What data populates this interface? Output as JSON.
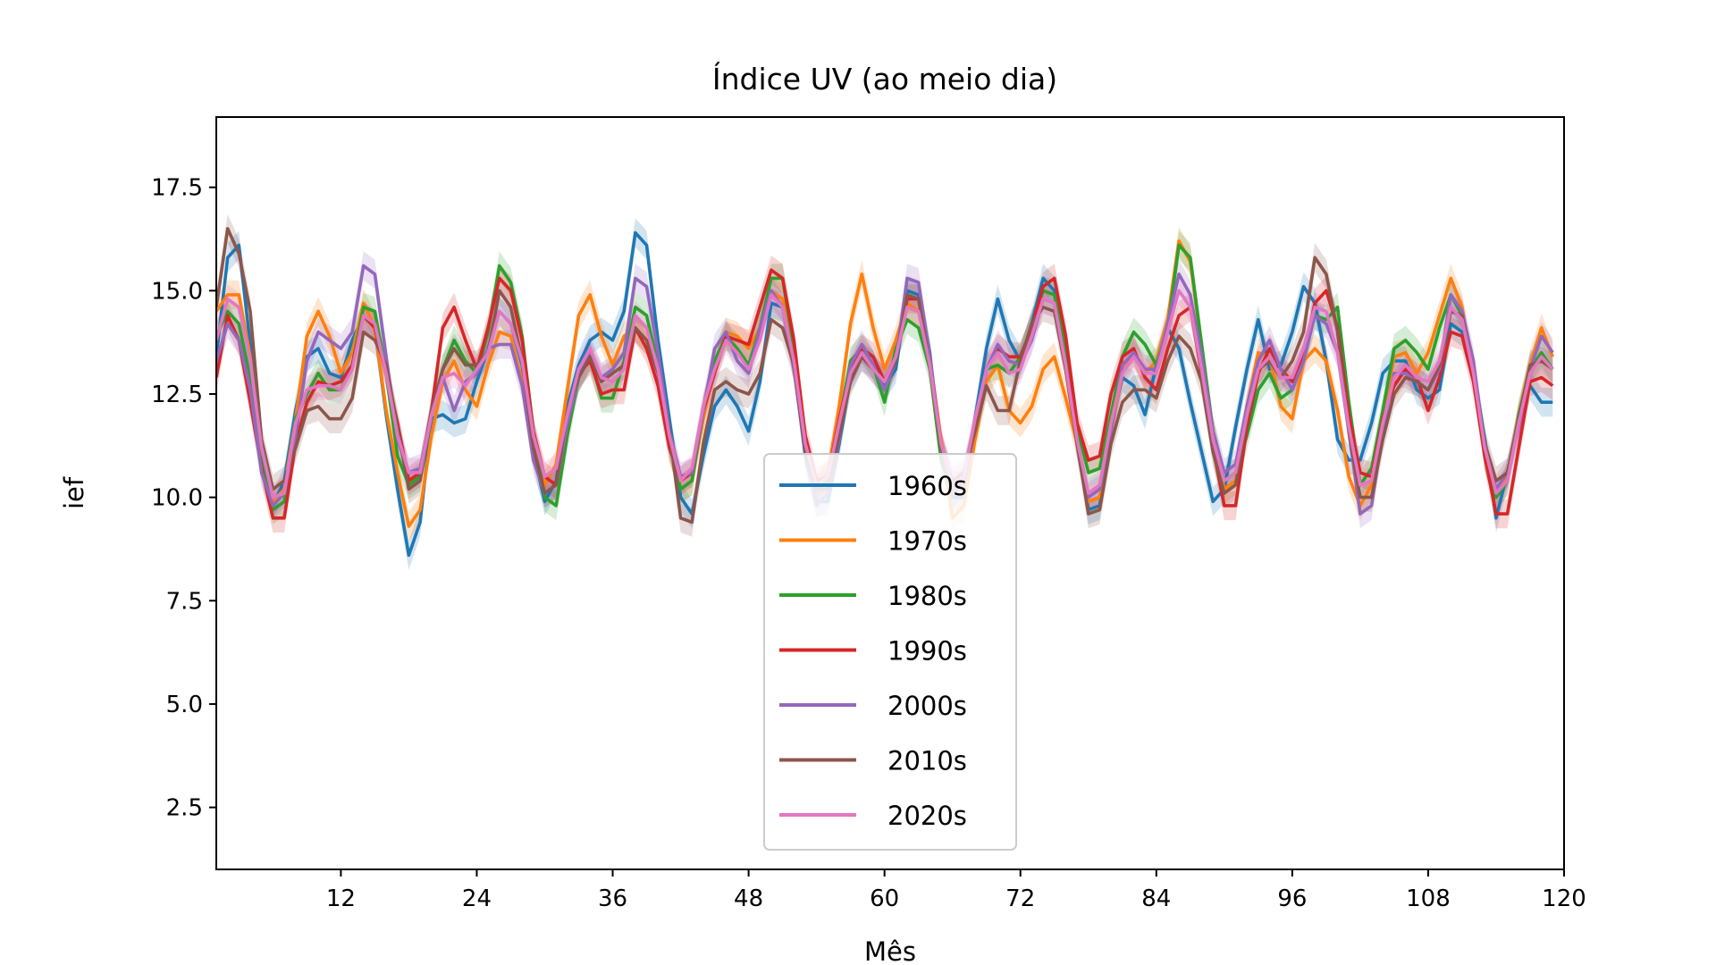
{
  "chart_data": {
    "type": "line",
    "title": "Índice UV (ao meio dia)",
    "xlabel": "Mês",
    "ylabel": "ief",
    "xlim": [
      1,
      120
    ],
    "ylim": [
      1.0,
      19.2
    ],
    "xticks": [
      12,
      24,
      36,
      48,
      60,
      72,
      84,
      96,
      108,
      120
    ],
    "yticks": [
      2.5,
      5.0,
      7.5,
      10.0,
      12.5,
      15.0,
      17.5
    ],
    "ytick_labels": [
      "2.5",
      "5.0",
      "7.5",
      "10.0",
      "12.5",
      "15.0",
      "17.5"
    ],
    "legend_position": "lower center",
    "confidence_band": true,
    "x_start": 1,
    "series": [
      {
        "name": "1960s",
        "color": "#1f77b4",
        "values": [
          13.4,
          15.8,
          16.1,
          13.7,
          11.2,
          9.8,
          10.4,
          12.1,
          13.4,
          13.6,
          13.0,
          12.9,
          13.8,
          14.4,
          14.1,
          12.0,
          10.2,
          8.6,
          9.4,
          11.9,
          12.0,
          11.8,
          11.9,
          12.8,
          13.6,
          14.5,
          14.2,
          13.2,
          11.1,
          9.9,
          10.4,
          12.2,
          13.2,
          13.8,
          14.0,
          13.8,
          14.5,
          16.4,
          16.1,
          13.8,
          11.9,
          10.0,
          9.6,
          11.0,
          12.2,
          12.6,
          12.2,
          11.6,
          12.8,
          14.7,
          14.6,
          13.2,
          11.0,
          9.9,
          9.9,
          11.3,
          12.9,
          13.4,
          13.2,
          12.7,
          13.1,
          15.0,
          14.9,
          13.5,
          11.0,
          10.0,
          10.0,
          11.9,
          13.6,
          14.8,
          13.8,
          13.3,
          14.2,
          15.3,
          15.0,
          13.4,
          11.4,
          9.7,
          9.8,
          11.7,
          12.9,
          12.7,
          12.0,
          13.2,
          14.1,
          13.6,
          12.3,
          11.1,
          9.9,
          10.2,
          11.7,
          13.1,
          14.3,
          13.1,
          13.2,
          14.0,
          15.1,
          14.7,
          13.3,
          11.4,
          10.9,
          10.9,
          11.8,
          13.0,
          13.3,
          13.3,
          12.6,
          12.4,
          12.6,
          14.2,
          14.0,
          13.1,
          11.4,
          9.5,
          10.6,
          11.8,
          12.7,
          12.3,
          12.3
        ]
      },
      {
        "name": "1970s",
        "color": "#ff7f0e",
        "values": [
          14.5,
          14.9,
          14.9,
          13.4,
          11.0,
          9.9,
          10.2,
          11.9,
          13.9,
          14.5,
          13.9,
          13.0,
          13.5,
          14.7,
          14.1,
          12.1,
          10.6,
          9.3,
          9.7,
          11.5,
          12.8,
          13.3,
          12.6,
          12.2,
          13.2,
          14.0,
          13.9,
          12.8,
          11.2,
          10.3,
          10.8,
          12.6,
          14.4,
          14.9,
          13.9,
          13.2,
          13.9,
          14.1,
          13.8,
          13.3,
          11.3,
          10.2,
          10.4,
          11.9,
          13.2,
          14.0,
          13.9,
          13.6,
          14.1,
          15.0,
          14.8,
          13.4,
          11.3,
          10.2,
          10.6,
          12.2,
          14.2,
          15.4,
          14.1,
          13.1,
          13.8,
          14.7,
          14.5,
          13.3,
          11.4,
          9.5,
          9.8,
          11.4,
          12.8,
          13.2,
          12.1,
          11.8,
          12.2,
          13.1,
          13.4,
          12.4,
          11.3,
          9.9,
          10.0,
          11.6,
          13.0,
          13.5,
          13.0,
          13.3,
          14.3,
          16.2,
          15.7,
          13.6,
          11.6,
          10.2,
          10.4,
          12.2,
          13.5,
          13.4,
          12.2,
          11.9,
          13.3,
          13.6,
          13.3,
          12.1,
          10.5,
          9.8,
          10.3,
          11.9,
          13.4,
          13.5,
          13.0,
          13.5,
          14.4,
          15.3,
          14.6,
          13.0,
          11.0,
          10.0,
          10.5,
          12.0,
          13.2,
          14.1,
          13.4
        ]
      },
      {
        "name": "1980s",
        "color": "#2ca02c",
        "values": [
          13.9,
          14.5,
          14.2,
          12.9,
          10.9,
          9.7,
          9.9,
          11.9,
          12.5,
          13.0,
          12.6,
          12.6,
          13.2,
          14.6,
          14.5,
          13.0,
          11.0,
          10.3,
          10.5,
          12.0,
          13.1,
          13.8,
          13.3,
          13.0,
          14.0,
          15.6,
          15.2,
          13.9,
          11.6,
          10.0,
          9.8,
          11.5,
          12.9,
          13.4,
          12.4,
          12.4,
          13.3,
          14.6,
          14.4,
          13.2,
          11.3,
          10.2,
          10.4,
          12.1,
          13.3,
          13.9,
          13.6,
          13.2,
          14.1,
          15.3,
          15.3,
          13.6,
          11.1,
          10.2,
          10.4,
          11.8,
          13.3,
          13.6,
          13.2,
          12.3,
          13.6,
          14.3,
          14.1,
          13.1,
          10.9,
          10.1,
          10.4,
          11.8,
          13.1,
          13.2,
          13.0,
          13.4,
          14.1,
          15.0,
          14.9,
          13.6,
          11.7,
          10.6,
          10.7,
          12.0,
          13.4,
          14.0,
          13.7,
          13.2,
          14.1,
          16.1,
          15.8,
          13.7,
          11.6,
          10.4,
          10.6,
          11.5,
          12.6,
          13.0,
          12.4,
          12.6,
          13.4,
          14.4,
          14.3,
          14.6,
          12.3,
          10.3,
          10.7,
          12.1,
          13.6,
          13.8,
          13.5,
          13.1,
          14.1,
          14.9,
          14.4,
          13.0,
          11.0,
          10.0,
          10.4,
          12.0,
          13.1,
          13.5,
          13.1
        ]
      },
      {
        "name": "1990s",
        "color": "#d62728",
        "values": [
          12.9,
          14.4,
          13.8,
          12.3,
          10.7,
          9.5,
          9.5,
          11.3,
          12.3,
          12.8,
          12.7,
          12.8,
          13.2,
          14.4,
          14.1,
          13.0,
          11.8,
          10.4,
          10.6,
          12.1,
          14.1,
          14.6,
          13.8,
          13.1,
          14.1,
          15.3,
          15.0,
          13.8,
          11.6,
          10.5,
          10.3,
          11.8,
          13.0,
          13.3,
          12.5,
          12.6,
          12.6,
          14.1,
          13.6,
          12.7,
          11.2,
          10.4,
          10.6,
          12.1,
          13.0,
          13.9,
          13.8,
          13.7,
          14.6,
          15.5,
          15.3,
          13.8,
          11.5,
          10.4,
          10.5,
          11.9,
          13.0,
          13.6,
          13.4,
          12.8,
          13.4,
          14.8,
          14.8,
          13.4,
          11.3,
          10.3,
          10.3,
          11.8,
          13.1,
          13.6,
          13.4,
          13.4,
          14.1,
          15.1,
          15.3,
          13.9,
          11.8,
          10.9,
          11.0,
          12.5,
          13.4,
          13.6,
          12.9,
          12.6,
          13.6,
          14.4,
          14.6,
          13.0,
          11.2,
          9.8,
          9.8,
          11.7,
          13.0,
          13.6,
          13.1,
          12.8,
          13.4,
          14.7,
          15.0,
          14.1,
          12.0,
          10.6,
          10.5,
          11.9,
          12.7,
          13.1,
          12.9,
          12.1,
          12.9,
          14.0,
          13.9,
          12.8,
          11.0,
          9.6,
          9.6,
          11.2,
          12.8,
          12.9,
          12.7
        ]
      },
      {
        "name": "2000s",
        "color": "#9467bd",
        "values": [
          13.3,
          14.2,
          13.8,
          12.6,
          10.6,
          9.8,
          10.1,
          11.5,
          13.3,
          14.0,
          13.8,
          13.6,
          14.0,
          15.6,
          15.4,
          13.4,
          11.4,
          10.6,
          10.7,
          12.0,
          12.9,
          12.1,
          12.8,
          13.0,
          13.6,
          13.7,
          13.7,
          12.7,
          10.9,
          10.1,
          10.3,
          11.8,
          12.9,
          13.5,
          12.9,
          13.1,
          13.5,
          15.3,
          15.1,
          13.5,
          11.6,
          10.5,
          10.6,
          12.1,
          13.6,
          14.0,
          13.3,
          13.0,
          14.1,
          15.0,
          14.6,
          13.1,
          11.1,
          9.8,
          10.1,
          11.4,
          13.2,
          13.7,
          13.2,
          12.6,
          13.3,
          15.3,
          15.2,
          13.4,
          11.2,
          10.1,
          10.3,
          11.7,
          13.1,
          13.7,
          13.3,
          13.2,
          13.8,
          14.8,
          14.7,
          13.2,
          11.3,
          10.0,
          10.2,
          11.6,
          13.2,
          13.5,
          13.1,
          13.1,
          14.2,
          15.4,
          14.9,
          13.4,
          11.6,
          10.6,
          10.8,
          12.2,
          13.3,
          13.8,
          13.1,
          12.6,
          13.3,
          14.4,
          14.2,
          13.5,
          11.6,
          9.6,
          9.8,
          11.6,
          13.0,
          13.0,
          12.8,
          12.6,
          13.1,
          14.9,
          14.5,
          13.3,
          11.2,
          10.2,
          10.6,
          11.7,
          13.1,
          13.9,
          13.5
        ]
      },
      {
        "name": "2010s",
        "color": "#8c564b",
        "values": [
          14.6,
          16.5,
          15.9,
          14.5,
          11.4,
          10.2,
          10.4,
          11.2,
          12.1,
          12.2,
          11.9,
          11.9,
          12.4,
          14.0,
          13.8,
          13.2,
          11.7,
          10.2,
          10.4,
          12.1,
          13.1,
          13.6,
          13.2,
          13.2,
          13.5,
          15.0,
          14.6,
          13.3,
          11.2,
          10.1,
          10.3,
          12.1,
          12.9,
          13.4,
          12.8,
          13.0,
          13.2,
          14.1,
          13.8,
          13.0,
          11.6,
          9.5,
          9.4,
          11.3,
          12.6,
          12.8,
          12.6,
          12.5,
          13.0,
          14.3,
          14.1,
          13.2,
          11.1,
          10.2,
          10.2,
          11.5,
          12.8,
          13.4,
          13.1,
          12.8,
          13.3,
          14.9,
          14.8,
          13.2,
          11.2,
          10.4,
          10.6,
          11.6,
          12.7,
          12.1,
          12.1,
          13.3,
          14.2,
          14.6,
          14.5,
          13.1,
          11.3,
          9.6,
          9.7,
          11.3,
          12.3,
          12.6,
          12.6,
          12.4,
          13.3,
          13.9,
          13.6,
          12.8,
          11.1,
          10.1,
          10.3,
          11.9,
          13.1,
          13.3,
          12.9,
          13.3,
          14.0,
          15.8,
          15.4,
          14.0,
          11.6,
          10.0,
          10.0,
          11.4,
          12.5,
          12.9,
          12.8,
          12.6,
          13.2,
          14.5,
          14.4,
          13.0,
          11.3,
          10.4,
          10.6,
          11.9,
          13.2,
          13.3,
          13.1
        ]
      },
      {
        "name": "2020s",
        "color": "#e377c2",
        "values": [
          13.8,
          14.8,
          14.6,
          13.3,
          11.2,
          10.0,
          10.1,
          11.8,
          12.6,
          12.7,
          12.7,
          12.6,
          13.1,
          14.4,
          14.2,
          13.0,
          11.5,
          10.6,
          10.6,
          12.0,
          12.9,
          13.0,
          12.7,
          13.1,
          13.5,
          14.5,
          14.2,
          13.3,
          11.5,
          10.5,
          10.7,
          12.0,
          13.1,
          13.6,
          12.9,
          12.8,
          13.1,
          14.4,
          14.1,
          13.1,
          11.5,
          10.4,
          10.7,
          12.2,
          13.1,
          13.8,
          13.5,
          13.1,
          13.8,
          14.9,
          14.6,
          13.3,
          11.3,
          10.3,
          10.5,
          11.8,
          13.0,
          13.5,
          13.1,
          12.8,
          13.4,
          14.6,
          14.5,
          13.2,
          11.3,
          10.3,
          10.5,
          11.9,
          13.1,
          13.5,
          13.0,
          13.1,
          13.9,
          14.8,
          14.7,
          13.2,
          11.4,
          10.1,
          10.3,
          11.8,
          13.0,
          13.4,
          13.0,
          13.0,
          14.0,
          15.0,
          14.6,
          13.1,
          11.4,
          10.4,
          10.6,
          12.0,
          13.1,
          13.4,
          12.9,
          12.9,
          13.6,
          14.6,
          14.5,
          13.5,
          11.7,
          10.3,
          10.4,
          11.8,
          12.9,
          13.2,
          12.9,
          12.8,
          13.3,
          14.6,
          14.3,
          13.0,
          11.2,
          10.1,
          10.4,
          11.8,
          13.0,
          13.4,
          13.1
        ]
      }
    ]
  }
}
